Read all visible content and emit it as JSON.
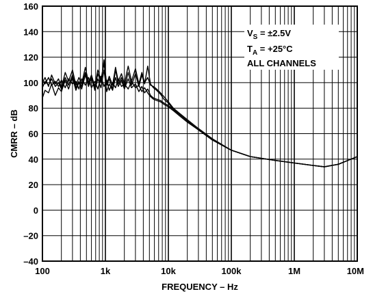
{
  "chart_data": {
    "type": "line",
    "xscale": "log",
    "xlim": [
      100,
      10000000
    ],
    "ylim": [
      -40,
      160
    ],
    "grid": true,
    "xlabel": "FREQUENCY – Hz",
    "ylabel": "CMRR – dB",
    "x_ticks": [
      {
        "value": 100,
        "label": "100"
      },
      {
        "value": 1000,
        "label": "1k"
      },
      {
        "value": 10000,
        "label": "10k"
      },
      {
        "value": 100000,
        "label": "100k"
      },
      {
        "value": 1000000,
        "label": "1M"
      },
      {
        "value": 10000000,
        "label": "10M"
      }
    ],
    "y_ticks": [
      {
        "value": 160,
        "label": "160"
      },
      {
        "value": 140,
        "label": "140"
      },
      {
        "value": 120,
        "label": "120"
      },
      {
        "value": 100,
        "label": "100"
      },
      {
        "value": 80,
        "label": "80"
      },
      {
        "value": 60,
        "label": "60"
      },
      {
        "value": 40,
        "label": "40"
      },
      {
        "value": 20,
        "label": "20"
      },
      {
        "value": 0,
        "label": "0"
      },
      {
        "value": -20,
        "label": "–20"
      },
      {
        "value": -40,
        "label": "–40"
      }
    ],
    "annotation": {
      "vs_main": "V",
      "vs_sub": "S",
      "vs_value": " = ±2.5V",
      "ta_main": "T",
      "ta_sub": "A",
      "ta_value": " = +25°C",
      "channels": "ALL CHANNELS"
    },
    "series": [
      {
        "x": [
          100,
          110,
          125,
          140,
          160,
          180,
          200,
          230,
          260,
          300,
          340,
          380,
          420,
          480,
          540,
          600,
          680,
          760,
          850,
          950,
          1050,
          1150,
          1300,
          1450,
          1600,
          1800,
          2000,
          2300,
          2600,
          3000,
          3400,
          3800,
          4200,
          4700,
          5200,
          5800,
          6500,
          7500,
          8500,
          10000,
          12000,
          15000,
          20000,
          30000,
          50000,
          100000,
          200000,
          500000,
          1000000,
          2000000,
          3000000,
          5000000,
          10000000
        ],
        "values": [
          100,
          104,
          97,
          106,
          99,
          103,
          96,
          108,
          101,
          110,
          98,
          104,
          99,
          112,
          100,
          106,
          97,
          110,
          102,
          115,
          99,
          105,
          98,
          112,
          101,
          107,
          99,
          113,
          101,
          111,
          99,
          108,
          100,
          104,
          98,
          97,
          95,
          92,
          89,
          85,
          80,
          76,
          71,
          64,
          56,
          47,
          42,
          39,
          37,
          35,
          34,
          36,
          42
        ]
      },
      {
        "x": [
          100,
          110,
          125,
          140,
          160,
          180,
          200,
          230,
          260,
          300,
          340,
          380,
          420,
          480,
          540,
          600,
          680,
          760,
          850,
          950,
          1050,
          1150,
          1300,
          1450,
          1600,
          1800,
          2000,
          2300,
          2600,
          3000,
          3400,
          3800,
          4200,
          4700,
          5200,
          5800,
          6500,
          7500,
          8500,
          10000,
          12000,
          15000,
          20000,
          30000,
          50000,
          100000,
          200000,
          500000,
          1000000,
          2000000,
          3000000,
          5000000,
          10000000
        ],
        "values": [
          96,
          101,
          98,
          103,
          97,
          100,
          95,
          104,
          98,
          106,
          96,
          101,
          97,
          108,
          99,
          103,
          96,
          107,
          100,
          118,
          98,
          103,
          95,
          110,
          99,
          104,
          96,
          108,
          98,
          107,
          97,
          106,
          99,
          113,
          99,
          96,
          94,
          91,
          87,
          84,
          79,
          75,
          70,
          63,
          55,
          47,
          42,
          39,
          37,
          35,
          34,
          36,
          42
        ]
      },
      {
        "x": [
          100,
          110,
          125,
          140,
          160,
          180,
          200,
          230,
          260,
          300,
          340,
          380,
          420,
          480,
          540,
          600,
          680,
          760,
          850,
          950,
          1050,
          1150,
          1300,
          1450,
          1600,
          1800,
          2000,
          2300,
          2600,
          3000,
          3400,
          3800,
          4200,
          4700,
          5200,
          5800,
          6500,
          7500,
          8500,
          10000,
          12000,
          15000,
          20000,
          30000,
          50000,
          100000,
          200000,
          500000,
          1000000,
          2000000,
          3000000,
          5000000,
          10000000
        ],
        "values": [
          88,
          94,
          92,
          99,
          90,
          96,
          93,
          102,
          95,
          104,
          94,
          100,
          95,
          106,
          97,
          104,
          94,
          103,
          96,
          110,
          93,
          99,
          94,
          104,
          97,
          102,
          95,
          103,
          96,
          99,
          93,
          97,
          92,
          95,
          90,
          88,
          87,
          86,
          84,
          82,
          79,
          75,
          70,
          63,
          55,
          47,
          42,
          39,
          37,
          35,
          34,
          36,
          42
        ]
      },
      {
        "x": [
          100,
          110,
          125,
          140,
          160,
          180,
          200,
          230,
          260,
          300,
          340,
          380,
          420,
          480,
          540,
          600,
          680,
          760,
          850,
          950,
          1050,
          1150,
          1300,
          1450,
          1600,
          1800,
          2000,
          2300,
          2600,
          3000,
          3400,
          3800,
          4200,
          4700,
          5200,
          5800,
          6500,
          7500,
          8500,
          10000,
          12000,
          15000,
          20000,
          30000,
          50000,
          100000,
          200000,
          500000,
          1000000,
          2000000,
          3000000,
          5000000,
          10000000
        ],
        "values": [
          102,
          99,
          104,
          98,
          101,
          97,
          102,
          96,
          103,
          99,
          101,
          95,
          103,
          98,
          104,
          96,
          101,
          95,
          105,
          97,
          102,
          94,
          100,
          96,
          103,
          97,
          99,
          95,
          101,
          96,
          98,
          93,
          96,
          92,
          89,
          87,
          86,
          85,
          83,
          81,
          78,
          74,
          69,
          63,
          55,
          47,
          42,
          39,
          37,
          35,
          34,
          36,
          42
        ]
      }
    ]
  }
}
